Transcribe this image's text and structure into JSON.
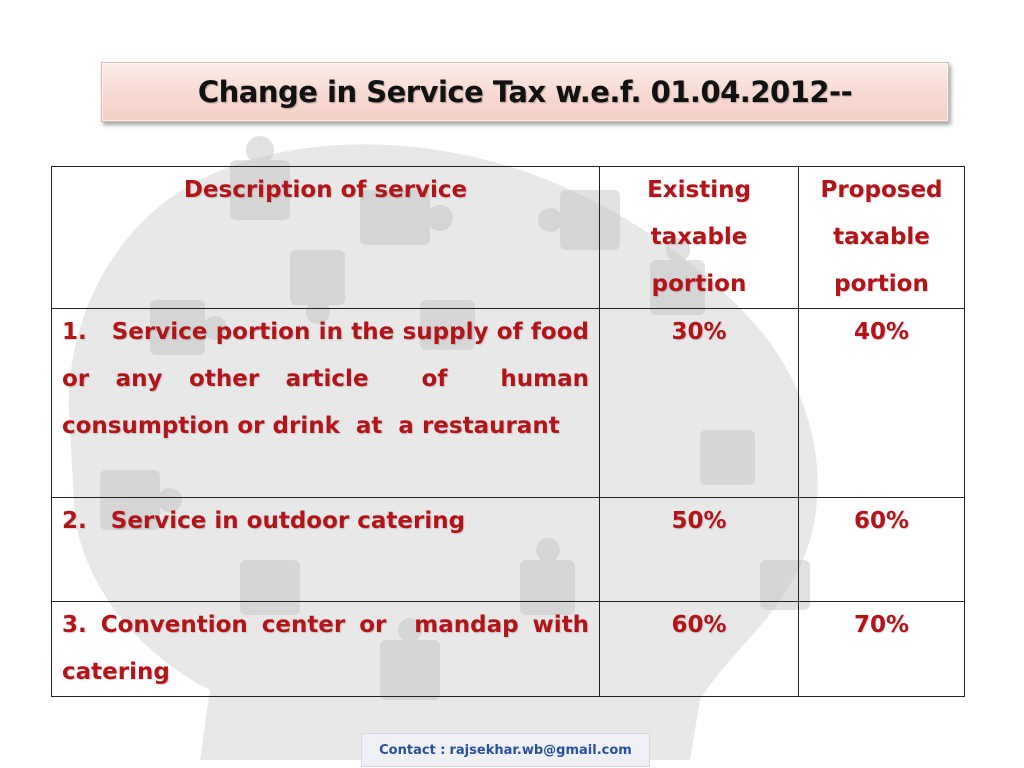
{
  "title": "Change in Service Tax w.e.f. 01.04.2012--",
  "table": {
    "headers": {
      "description": "Description of service",
      "existing": "Existing taxable portion",
      "proposed": "Proposed taxable portion"
    },
    "rows": [
      {
        "description": "1.   Service portion in the supply of food or any other article  of  human consumption or drink  at  a restaurant",
        "existing": "30%",
        "proposed": "40%"
      },
      {
        "description": "2.   Service in outdoor catering",
        "existing": "50%",
        "proposed": "60%"
      },
      {
        "description": "3. Convention center or  mandap with catering",
        "existing": "60%",
        "proposed": "70%"
      }
    ]
  },
  "contact": {
    "label": "Contact  :",
    "email": "rajsekhar.wb@gmail.com"
  },
  "colors": {
    "accent_text": "#b3141a",
    "title_box": "#f7d9d2",
    "contact_text": "#2b4f9e"
  }
}
